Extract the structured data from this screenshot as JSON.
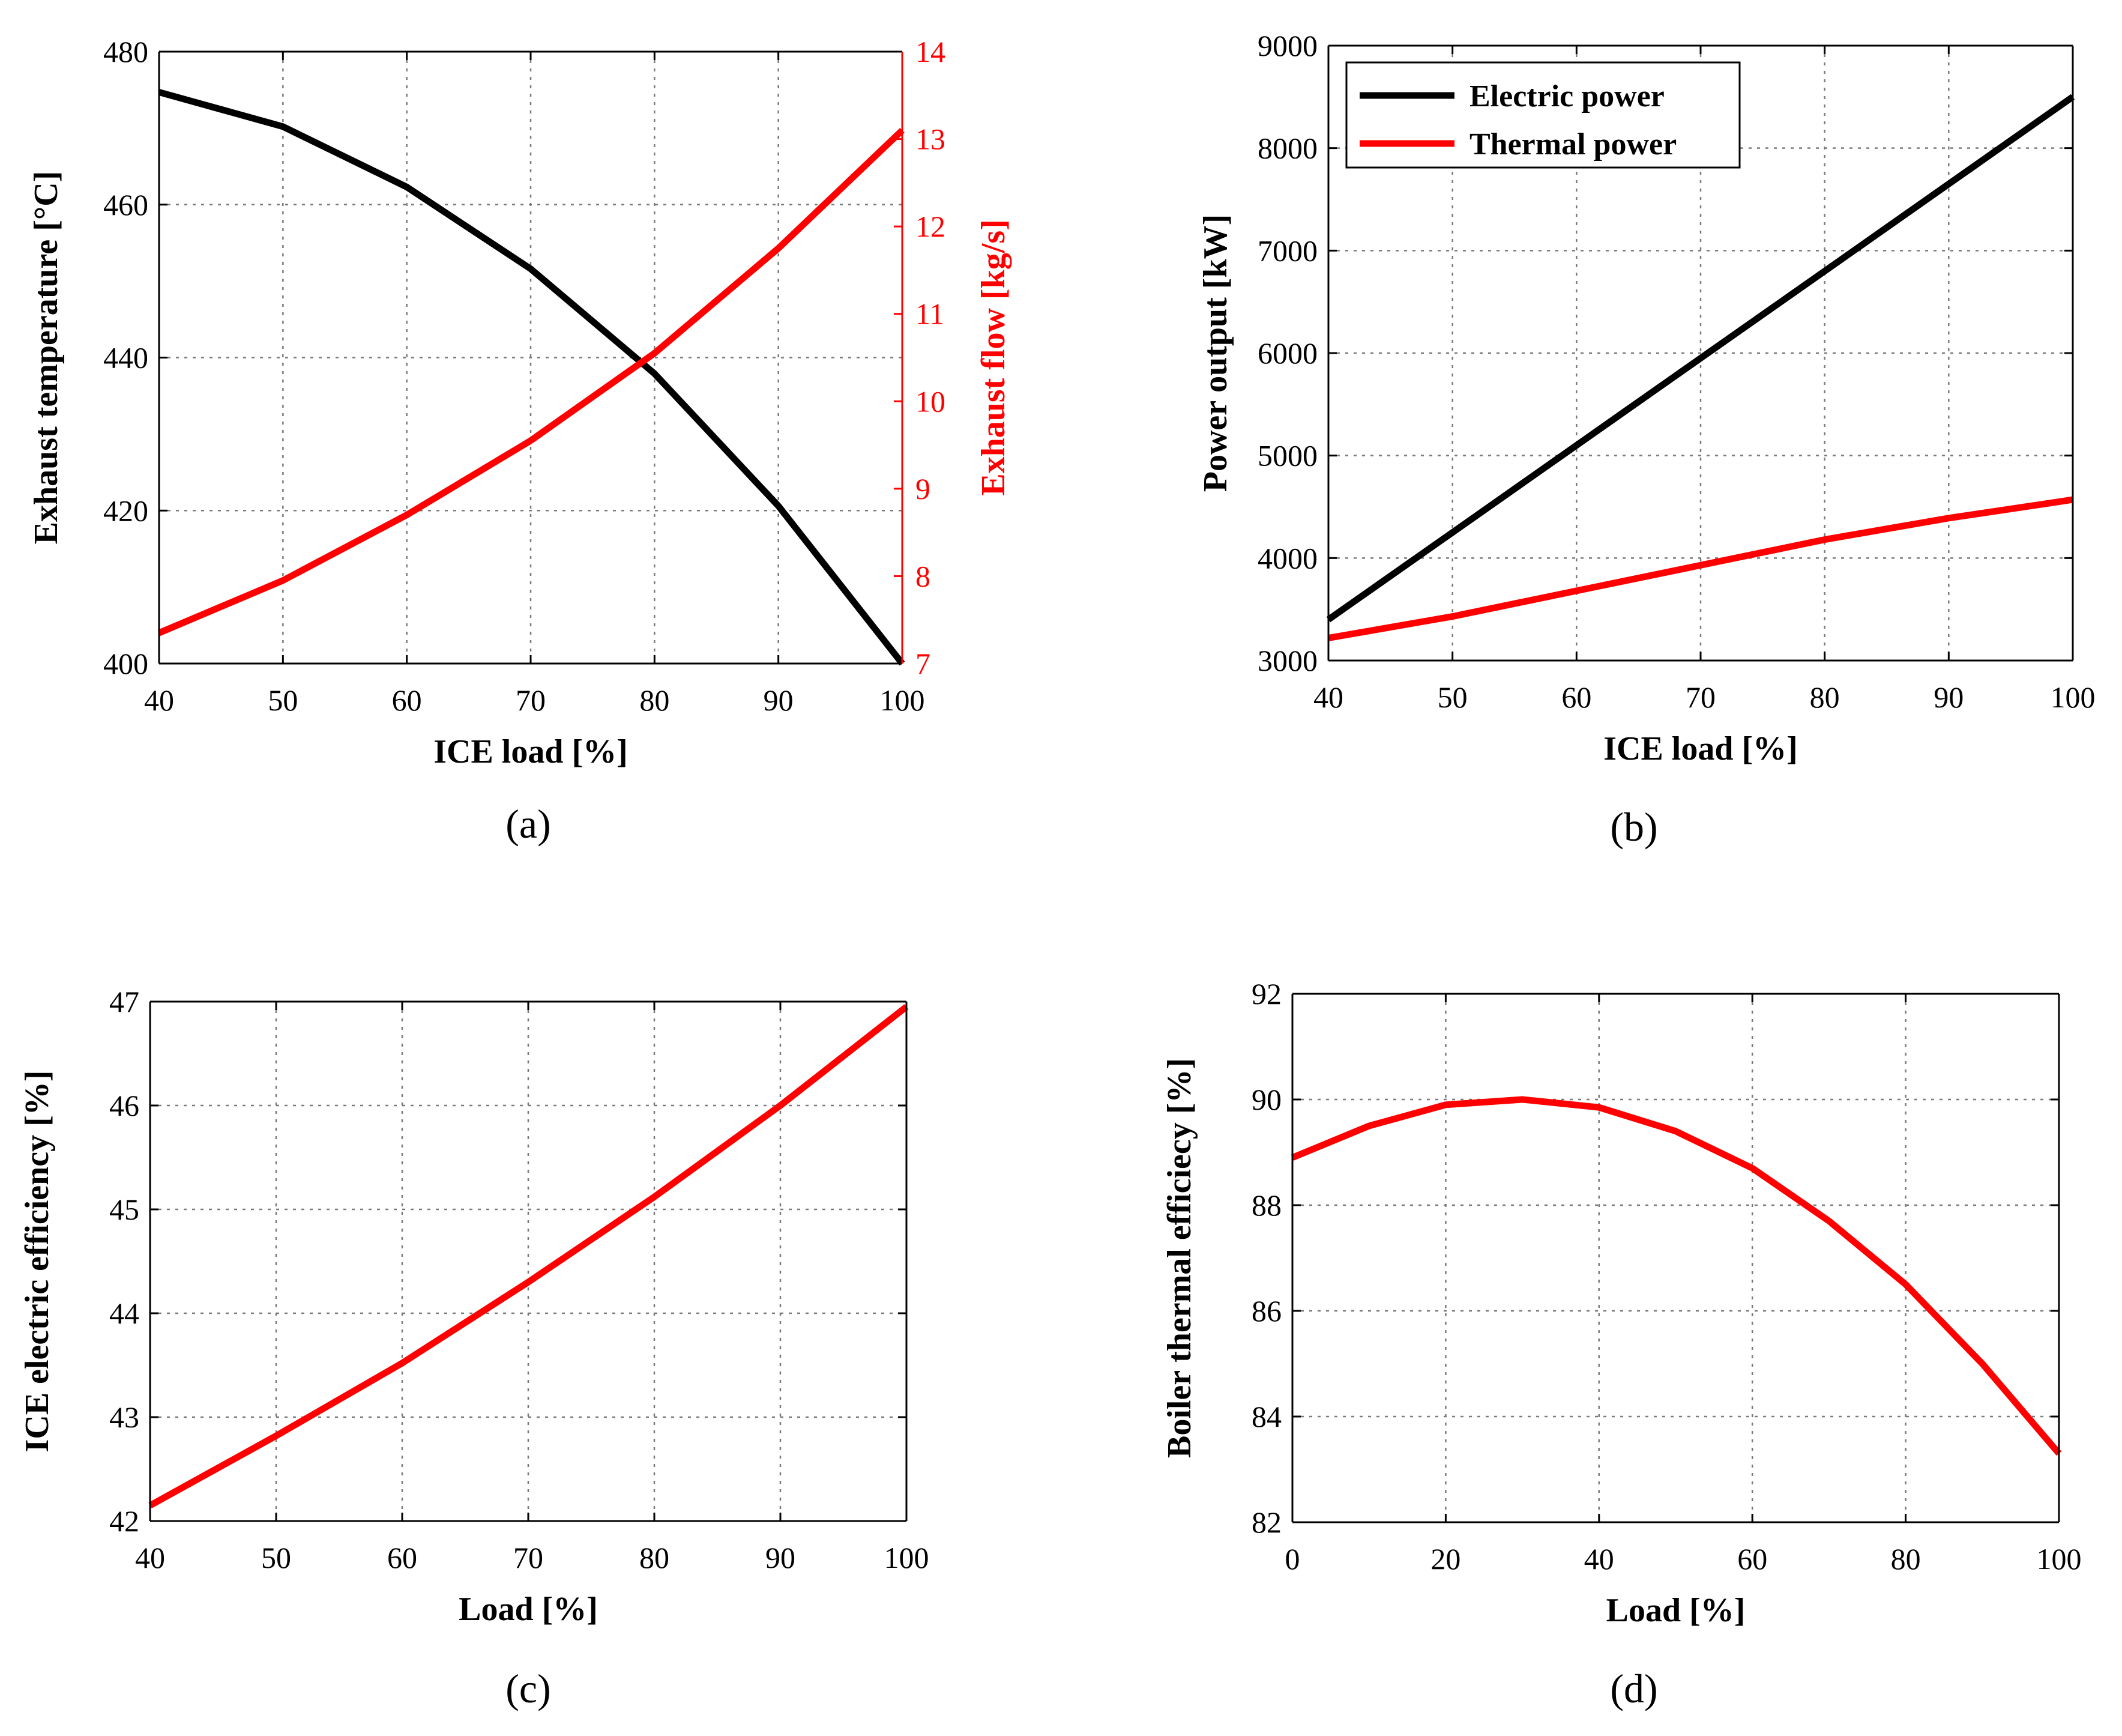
{
  "chart_data": [
    {
      "id": "a",
      "type": "line",
      "panel_label": "(a)",
      "xlabel": "ICE load [%]",
      "ylabel": "Exhaust temperature [°C]",
      "ylabel_right": "Exhaust flow [kg/s]",
      "xlim": [
        40,
        100
      ],
      "ylim": [
        400,
        480
      ],
      "ylim_right": [
        7,
        14
      ],
      "xticks": [
        40,
        50,
        60,
        70,
        80,
        90,
        100
      ],
      "yticks": [
        400,
        420,
        440,
        460,
        480
      ],
      "yticks_right": [
        7,
        8,
        9,
        10,
        11,
        12,
        13,
        14
      ],
      "grid": true,
      "series": [
        {
          "name": "Exhaust temperature",
          "axis": "left",
          "color": "#000000",
          "x": [
            40,
            50,
            60,
            70,
            80,
            90,
            100
          ],
          "values": [
            474.7,
            470.2,
            462.3,
            451.6,
            437.9,
            420.6,
            400.0
          ]
        },
        {
          "name": "Exhaust flow",
          "axis": "right",
          "color": "#ff0000",
          "x": [
            40,
            50,
            60,
            70,
            80,
            90,
            100
          ],
          "values": [
            7.35,
            7.95,
            8.7,
            9.55,
            10.55,
            11.75,
            13.1
          ]
        }
      ]
    },
    {
      "id": "b",
      "type": "line",
      "panel_label": "(b)",
      "xlabel": "ICE load [%]",
      "ylabel": "Power output [kW]",
      "xlim": [
        40,
        100
      ],
      "ylim": [
        3000,
        9000
      ],
      "xticks": [
        40,
        50,
        60,
        70,
        80,
        90,
        100
      ],
      "yticks": [
        3000,
        4000,
        5000,
        6000,
        7000,
        8000,
        9000
      ],
      "grid": true,
      "legend": "top-left",
      "series": [
        {
          "name": "Electric power",
          "color": "#000000",
          "x": [
            40,
            50,
            60,
            70,
            80,
            90,
            100
          ],
          "values": [
            3400,
            4250,
            5100,
            5950,
            6800,
            7650,
            8500
          ]
        },
        {
          "name": "Thermal power",
          "color": "#ff0000",
          "x": [
            40,
            50,
            60,
            70,
            80,
            90,
            100
          ],
          "values": [
            3220,
            3430,
            3680,
            3930,
            4180,
            4390,
            4570
          ]
        }
      ]
    },
    {
      "id": "c",
      "type": "line",
      "panel_label": "(c)",
      "xlabel": "Load [%]",
      "ylabel": "ICE electric efficiency [%]",
      "xlim": [
        40,
        100
      ],
      "ylim": [
        42,
        47
      ],
      "xticks": [
        40,
        50,
        60,
        70,
        80,
        90,
        100
      ],
      "yticks": [
        42,
        43,
        44,
        45,
        46,
        47
      ],
      "grid": true,
      "series": [
        {
          "name": "ICE electric efficiency",
          "color": "#ff0000",
          "x": [
            40,
            50,
            60,
            70,
            80,
            90,
            100
          ],
          "values": [
            42.15,
            42.82,
            43.52,
            44.3,
            45.12,
            46.0,
            46.95
          ]
        }
      ]
    },
    {
      "id": "d",
      "type": "line",
      "panel_label": "(d)",
      "xlabel": "Load [%]",
      "ylabel": "Boiler thermal efficiecy [%]",
      "xlim": [
        0,
        100
      ],
      "ylim": [
        82,
        92
      ],
      "xticks": [
        0,
        20,
        40,
        60,
        80,
        100
      ],
      "yticks": [
        82,
        84,
        86,
        88,
        90,
        92
      ],
      "grid": true,
      "series": [
        {
          "name": "Boiler thermal efficiency",
          "color": "#ff0000",
          "x": [
            0,
            10,
            20,
            30,
            40,
            50,
            60,
            70,
            80,
            90,
            100
          ],
          "values": [
            88.9,
            89.5,
            89.9,
            90.0,
            89.85,
            89.4,
            88.7,
            87.7,
            86.5,
            85.0,
            83.3
          ]
        }
      ]
    }
  ]
}
